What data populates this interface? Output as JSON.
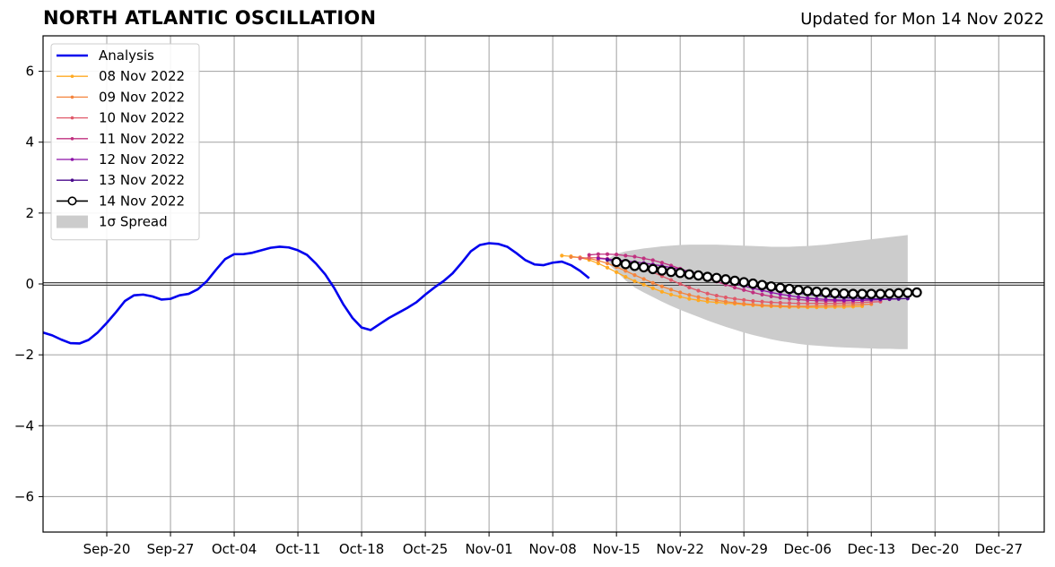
{
  "chart_data": {
    "type": "line",
    "title": "NORTH ATLANTIC OSCILLATION",
    "subtitle": "Updated for Mon 14 Nov 2022",
    "xlabel": "",
    "ylabel": "",
    "xlim": [
      "2022-09-13",
      "2023-01-01"
    ],
    "ylim": [
      -7,
      7
    ],
    "grid": true,
    "legend_position": "top-left",
    "x_ticks": [
      "2022-09-20",
      "2022-09-27",
      "2022-10-04",
      "2022-10-11",
      "2022-10-18",
      "2022-10-25",
      "2022-11-01",
      "2022-11-08",
      "2022-11-15",
      "2022-11-22",
      "2022-11-29",
      "2022-12-06",
      "2022-12-13",
      "2022-12-20",
      "2022-12-27"
    ],
    "x_tick_labels": [
      "Sep-20",
      "Sep-27",
      "Oct-04",
      "Oct-11",
      "Oct-18",
      "Oct-25",
      "Nov-01",
      "Nov-08",
      "Nov-15",
      "Nov-22",
      "Nov-29",
      "Dec-06",
      "Dec-13",
      "Dec-20",
      "Dec-27"
    ],
    "y_ticks": [
      6,
      4,
      2,
      0,
      -2,
      -4,
      -6
    ],
    "y_tick_labels": [
      "6",
      "4",
      "2",
      "0",
      "−2",
      "−4",
      "−6"
    ],
    "analysis": {
      "name": "Analysis",
      "color": "#0000ee",
      "x": [
        "2022-09-13",
        "2022-09-14",
        "2022-09-15",
        "2022-09-16",
        "2022-09-17",
        "2022-09-18",
        "2022-09-19",
        "2022-09-20",
        "2022-09-21",
        "2022-09-22",
        "2022-09-23",
        "2022-09-24",
        "2022-09-25",
        "2022-09-26",
        "2022-09-27",
        "2022-09-28",
        "2022-09-29",
        "2022-09-30",
        "2022-10-01",
        "2022-10-02",
        "2022-10-03",
        "2022-10-04",
        "2022-10-05",
        "2022-10-06",
        "2022-10-07",
        "2022-10-08",
        "2022-10-09",
        "2022-10-10",
        "2022-10-11",
        "2022-10-12",
        "2022-10-13",
        "2022-10-14",
        "2022-10-15",
        "2022-10-16",
        "2022-10-17",
        "2022-10-18",
        "2022-10-19",
        "2022-10-20",
        "2022-10-21",
        "2022-10-22",
        "2022-10-23",
        "2022-10-24",
        "2022-10-25",
        "2022-10-26",
        "2022-10-27",
        "2022-10-28",
        "2022-10-29",
        "2022-10-30",
        "2022-10-31",
        "2022-11-01",
        "2022-11-02",
        "2022-11-03",
        "2022-11-04",
        "2022-11-05",
        "2022-11-06",
        "2022-11-07",
        "2022-11-08",
        "2022-11-09",
        "2022-11-10",
        "2022-11-11",
        "2022-11-12",
        "2022-11-13",
        "2022-11-14"
      ],
      "y": [
        -1.37,
        -1.45,
        -1.57,
        -1.67,
        -1.68,
        -1.58,
        -1.37,
        -1.1,
        -0.8,
        -0.48,
        -0.32,
        -0.3,
        -0.35,
        -0.44,
        -0.42,
        -0.32,
        -0.28,
        -0.15,
        0.08,
        0.4,
        0.7,
        0.84,
        0.84,
        0.88,
        0.95,
        1.02,
        1.05,
        1.03,
        0.95,
        0.82,
        0.57,
        0.27,
        -0.12,
        -0.58,
        -0.96,
        -1.23,
        -1.3,
        -1.13,
        -0.96,
        -0.82,
        -0.68,
        -0.52,
        -0.3,
        -0.1,
        0.08,
        0.3,
        0.6,
        0.92,
        1.1,
        1.15,
        1.13,
        1.05,
        0.87,
        0.67,
        0.55,
        0.53,
        0.6,
        0.63,
        0.53,
        0.37,
        0.16,
        null,
        null
      ]
    },
    "series": [
      {
        "name": "08 Nov 2022",
        "color": "#ffaa22",
        "start": "2022-11-09",
        "y": [
          0.8,
          0.78,
          0.74,
          0.68,
          0.58,
          0.46,
          0.33,
          0.2,
          0.08,
          -0.02,
          -0.12,
          -0.22,
          -0.3,
          -0.36,
          -0.42,
          -0.46,
          -0.5,
          -0.52,
          -0.54,
          -0.56,
          -0.58,
          -0.6,
          -0.62,
          -0.63,
          -0.64,
          -0.65,
          -0.65,
          -0.66,
          -0.66,
          -0.66,
          -0.65,
          -0.65,
          -0.64,
          -0.63
        ]
      },
      {
        "name": "09 Nov 2022",
        "color": "#f4843d",
        "start": "2022-11-10",
        "y": [
          0.76,
          0.75,
          0.72,
          0.66,
          0.58,
          0.48,
          0.37,
          0.25,
          0.14,
          0.03,
          -0.07,
          -0.16,
          -0.24,
          -0.31,
          -0.37,
          -0.42,
          -0.46,
          -0.5,
          -0.53,
          -0.56,
          -0.58,
          -0.6,
          -0.61,
          -0.62,
          -0.63,
          -0.63,
          -0.63,
          -0.62,
          -0.62,
          -0.61,
          -0.6,
          -0.59,
          -0.58,
          -0.57
        ]
      },
      {
        "name": "10 Nov 2022",
        "color": "#e05a6a",
        "start": "2022-11-11",
        "y": [
          0.72,
          0.74,
          0.74,
          0.71,
          0.67,
          0.6,
          0.52,
          0.43,
          0.33,
          0.22,
          0.11,
          0.0,
          -0.1,
          -0.19,
          -0.27,
          -0.33,
          -0.38,
          -0.42,
          -0.45,
          -0.48,
          -0.5,
          -0.52,
          -0.53,
          -0.54,
          -0.55,
          -0.55,
          -0.55,
          -0.55,
          -0.55,
          -0.54,
          -0.53,
          -0.52,
          -0.51,
          -0.5
        ]
      },
      {
        "name": "11 Nov 2022",
        "color": "#c0307f",
        "start": "2022-11-12",
        "y": [
          0.82,
          0.84,
          0.84,
          0.83,
          0.8,
          0.77,
          0.72,
          0.67,
          0.6,
          0.52,
          0.43,
          0.34,
          0.25,
          0.16,
          0.07,
          -0.02,
          -0.1,
          -0.17,
          -0.24,
          -0.3,
          -0.35,
          -0.39,
          -0.42,
          -0.44,
          -0.46,
          -0.47,
          -0.48,
          -0.48,
          -0.48,
          -0.47,
          -0.46,
          -0.45,
          -0.44,
          -0.43
        ]
      },
      {
        "name": "12 Nov 2022",
        "color": "#8c10a8",
        "start": "2022-11-13",
        "y": [
          0.72,
          0.7,
          0.68,
          0.65,
          0.62,
          0.59,
          0.55,
          0.51,
          0.46,
          0.41,
          0.35,
          0.29,
          0.22,
          0.15,
          0.08,
          0.01,
          -0.06,
          -0.12,
          -0.18,
          -0.24,
          -0.29,
          -0.33,
          -0.37,
          -0.4,
          -0.42,
          -0.44,
          -0.45,
          -0.46,
          -0.46,
          -0.46,
          -0.45,
          -0.44,
          -0.43,
          -0.42
        ]
      },
      {
        "name": "13 Nov 2022",
        "color": "#4a0a8c",
        "start": "2022-11-14",
        "y": [
          0.68,
          0.63,
          0.58,
          0.53,
          0.48,
          0.44,
          0.4,
          0.36,
          0.32,
          0.28,
          0.24,
          0.2,
          0.15,
          0.1,
          0.05,
          0.0,
          -0.05,
          -0.1,
          -0.14,
          -0.18,
          -0.22,
          -0.26,
          -0.29,
          -0.32,
          -0.35,
          -0.37,
          -0.39,
          -0.4,
          -0.41,
          -0.42,
          -0.42,
          -0.42,
          -0.42,
          -0.41
        ]
      },
      {
        "name": "14 Nov 2022",
        "color": "#000000",
        "start": "2022-11-15",
        "y": [
          0.62,
          0.56,
          0.51,
          0.47,
          0.42,
          0.38,
          0.34,
          0.31,
          0.27,
          0.24,
          0.2,
          0.17,
          0.13,
          0.09,
          0.05,
          0.01,
          -0.03,
          -0.07,
          -0.11,
          -0.14,
          -0.17,
          -0.2,
          -0.22,
          -0.24,
          -0.26,
          -0.27,
          -0.28,
          -0.28,
          -0.28,
          -0.28,
          -0.27,
          -0.26,
          -0.25,
          -0.24
        ]
      }
    ],
    "spread": {
      "name": "1σ Spread",
      "color": "#cccccc",
      "start": "2022-11-14",
      "upper": [
        0.7,
        0.85,
        0.92,
        0.96,
        1.0,
        1.03,
        1.06,
        1.08,
        1.1,
        1.11,
        1.11,
        1.11,
        1.11,
        1.1,
        1.09,
        1.08,
        1.07,
        1.06,
        1.05,
        1.05,
        1.05,
        1.06,
        1.07,
        1.09,
        1.11,
        1.14,
        1.17,
        1.2,
        1.23,
        1.26,
        1.29,
        1.32,
        1.35,
        1.38
      ],
      "lower": [
        0.6,
        0.35,
        0.1,
        -0.1,
        -0.24,
        -0.37,
        -0.5,
        -0.62,
        -0.73,
        -0.83,
        -0.93,
        -1.03,
        -1.12,
        -1.21,
        -1.29,
        -1.37,
        -1.44,
        -1.5,
        -1.56,
        -1.61,
        -1.65,
        -1.69,
        -1.72,
        -1.74,
        -1.76,
        -1.78,
        -1.79,
        -1.8,
        -1.81,
        -1.82,
        -1.83,
        -1.83,
        -1.84,
        -1.84
      ]
    }
  }
}
